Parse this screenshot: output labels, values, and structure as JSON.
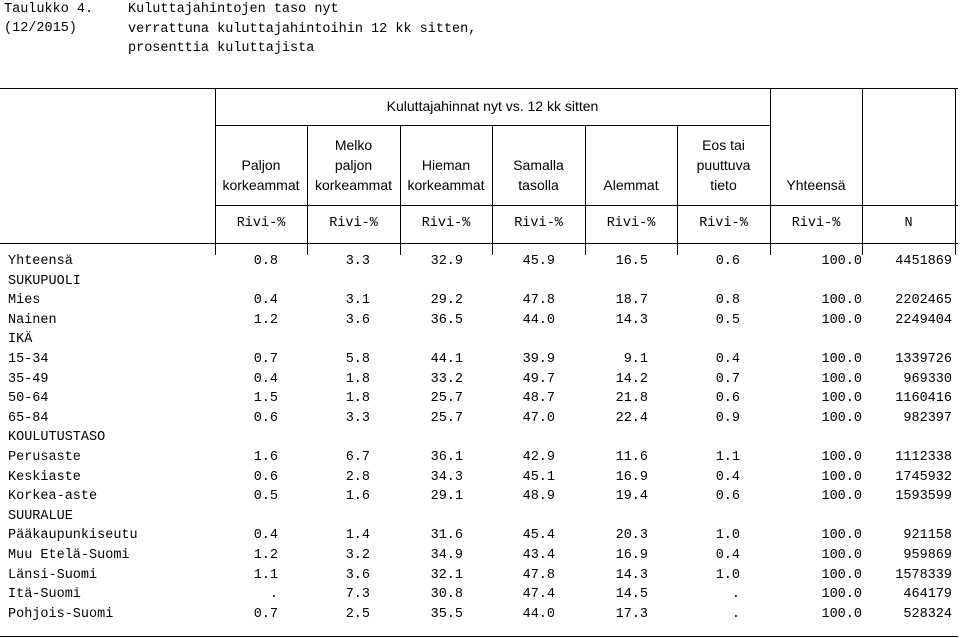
{
  "header": {
    "table_number": "Taulukko 4.",
    "date": "(12/2015)",
    "title_lines": [
      "Kuluttajahintojen taso nyt",
      "verrattuna kuluttajahintoihin 12 kk sitten,",
      "prosenttia kuluttajista"
    ]
  },
  "table": {
    "group_header": "Kuluttajahinnat nyt vs. 12 kk sitten",
    "columns": [
      [
        "Paljon",
        "korkeammat"
      ],
      [
        "Melko",
        "paljon",
        "korkeammat"
      ],
      [
        "Hieman",
        "korkeammat"
      ],
      [
        "Samalla",
        "tasolla"
      ],
      [
        "Alemmat"
      ],
      [
        "Eos tai",
        "puuttuva",
        "tieto"
      ],
      [
        "Yhteensä"
      ]
    ],
    "units": [
      "Rivi-%",
      "Rivi-%",
      "Rivi-%",
      "Rivi-%",
      "Rivi-%",
      "Rivi-%",
      "Rivi-%",
      "N"
    ],
    "rows": [
      [
        "Yhteensä",
        "0.8",
        "3.3",
        "32.9",
        "45.9",
        "16.5",
        "0.6",
        "100.0",
        "4451869"
      ],
      [
        "SUKUPUOLI"
      ],
      [
        "Mies",
        "0.4",
        "3.1",
        "29.2",
        "47.8",
        "18.7",
        "0.8",
        "100.0",
        "2202465"
      ],
      [
        "Nainen",
        "1.2",
        "3.6",
        "36.5",
        "44.0",
        "14.3",
        "0.5",
        "100.0",
        "2249404"
      ],
      [
        "IKÄ"
      ],
      [
        "15-34",
        "0.7",
        "5.8",
        "44.1",
        "39.9",
        "9.1",
        "0.4",
        "100.0",
        "1339726"
      ],
      [
        "35-49",
        "0.4",
        "1.8",
        "33.2",
        "49.7",
        "14.2",
        "0.7",
        "100.0",
        "969330"
      ],
      [
        "50-64",
        "1.5",
        "1.8",
        "25.7",
        "48.7",
        "21.8",
        "0.6",
        "100.0",
        "1160416"
      ],
      [
        "65-84",
        "0.6",
        "3.3",
        "25.7",
        "47.0",
        "22.4",
        "0.9",
        "100.0",
        "982397"
      ],
      [
        "KOULUTUSTASO"
      ],
      [
        "Perusaste",
        "1.6",
        "6.7",
        "36.1",
        "42.9",
        "11.6",
        "1.1",
        "100.0",
        "1112338"
      ],
      [
        "Keskiaste",
        "0.6",
        "2.8",
        "34.3",
        "45.1",
        "16.9",
        "0.4",
        "100.0",
        "1745932"
      ],
      [
        "Korkea-aste",
        "0.5",
        "1.6",
        "29.1",
        "48.9",
        "19.4",
        "0.6",
        "100.0",
        "1593599"
      ],
      [
        "SUURALUE"
      ],
      [
        "Pääkaupunkiseutu",
        "0.4",
        "1.4",
        "31.6",
        "45.4",
        "20.3",
        "1.0",
        "100.0",
        "921158"
      ],
      [
        "Muu Etelä-Suomi",
        "1.2",
        "3.2",
        "34.9",
        "43.4",
        "16.9",
        "0.4",
        "100.0",
        "959869"
      ],
      [
        "Länsi-Suomi",
        "1.1",
        "3.6",
        "32.1",
        "47.8",
        "14.3",
        "1.0",
        "100.0",
        "1578339"
      ],
      [
        "Itä-Suomi",
        ".",
        "7.3",
        "30.8",
        "47.4",
        "14.5",
        ".",
        "100.0",
        "464179"
      ],
      [
        "Pohjois-Suomi",
        "0.7",
        "2.5",
        "35.5",
        "44.0",
        "17.3",
        ".",
        "100.0",
        "528324"
      ]
    ]
  }
}
